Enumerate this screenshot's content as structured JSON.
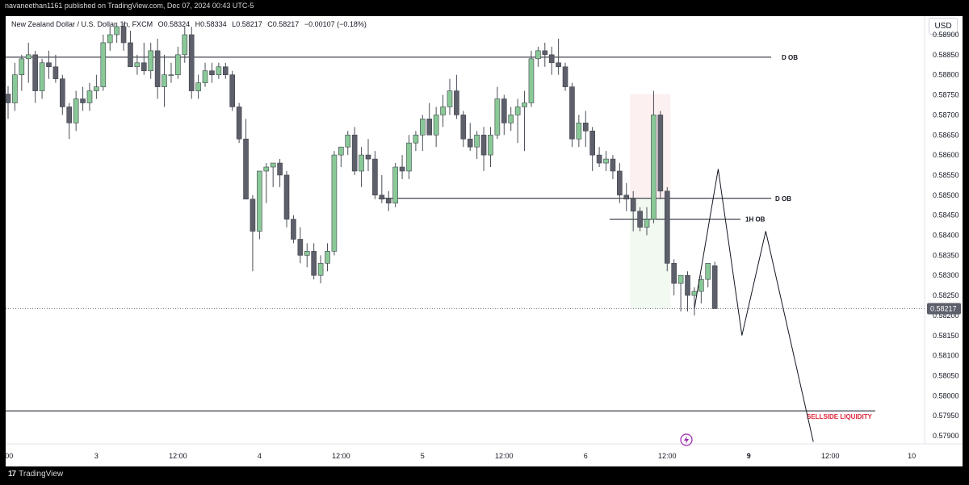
{
  "header": {
    "published_by": "navaneethan1161 published on TradingView.com, Dec 07, 2024 00:43 UTC-5"
  },
  "symbol": {
    "name": "New Zealand Dollar / U.S. Dollar, 1h, FXCM",
    "open": "O0.58324",
    "high": "H0.58334",
    "low": "L0.58217",
    "close": "C0.58217",
    "change": "−0.00107 (−0.18%)"
  },
  "currency_button": "USD",
  "footer": {
    "brand": "TradingView"
  },
  "colors": {
    "up": "#89c997",
    "down": "#5d606b",
    "sellside": "#e0243a"
  },
  "chart_data": {
    "type": "candlestick",
    "title": "New Zealand Dollar / U.S. Dollar, 1h, FXCM",
    "price_ticks": [
      "0.57900",
      "0.57950",
      "0.58000",
      "0.58050",
      "0.58100",
      "0.58150",
      "0.58200",
      "0.58250",
      "0.58300",
      "0.58350",
      "0.58400",
      "0.58450",
      "0.58500",
      "0.58550",
      "0.58600",
      "0.58650",
      "0.58700",
      "0.58750",
      "0.58800",
      "0.58850",
      "0.58900"
    ],
    "ylim": [
      0.5789,
      0.5894
    ],
    "time_ticks": [
      {
        "label": ":00",
        "bar": 0
      },
      {
        "label": "3",
        "bar": 13
      },
      {
        "label": "12:00",
        "bar": 25
      },
      {
        "label": "4",
        "bar": 37
      },
      {
        "label": "12:00",
        "bar": 49
      },
      {
        "label": "5",
        "bar": 61
      },
      {
        "label": "12:00",
        "bar": 73
      },
      {
        "label": "6",
        "bar": 85
      },
      {
        "label": "12:00",
        "bar": 97
      },
      {
        "label": "9",
        "bar": 109
      },
      {
        "label": "12:00",
        "bar": 121
      },
      {
        "label": "10",
        "bar": 133
      }
    ],
    "current_price": "0.58217",
    "candles": [
      [
        0.58752,
        0.58772,
        0.5869,
        0.5873
      ],
      [
        0.5873,
        0.5883,
        0.5871,
        0.588
      ],
      [
        0.588,
        0.5885,
        0.5876,
        0.5884
      ],
      [
        0.5884,
        0.5888,
        0.5878,
        0.5885
      ],
      [
        0.5885,
        0.5886,
        0.5873,
        0.5876
      ],
      [
        0.5876,
        0.5884,
        0.5874,
        0.5883
      ],
      [
        0.5883,
        0.5886,
        0.5879,
        0.5882
      ],
      [
        0.5882,
        0.5885,
        0.5878,
        0.5879
      ],
      [
        0.5879,
        0.588,
        0.587,
        0.5872
      ],
      [
        0.5872,
        0.5873,
        0.5864,
        0.5868
      ],
      [
        0.5868,
        0.5876,
        0.5866,
        0.5874
      ],
      [
        0.5874,
        0.5877,
        0.5871,
        0.5873
      ],
      [
        0.5873,
        0.5878,
        0.5871,
        0.5876
      ],
      [
        0.5876,
        0.588,
        0.5874,
        0.5877
      ],
      [
        0.5877,
        0.589,
        0.5876,
        0.5888
      ],
      [
        0.5888,
        0.5892,
        0.5886,
        0.589
      ],
      [
        0.589,
        0.5893,
        0.5888,
        0.5892
      ],
      [
        0.5892,
        0.5893,
        0.5886,
        0.5888
      ],
      [
        0.5888,
        0.5891,
        0.5882,
        0.5882
      ],
      [
        0.5882,
        0.5885,
        0.588,
        0.5883
      ],
      [
        0.5883,
        0.5888,
        0.588,
        0.5881
      ],
      [
        0.5881,
        0.5888,
        0.5879,
        0.5886
      ],
      [
        0.5886,
        0.5889,
        0.5874,
        0.5877
      ],
      [
        0.5877,
        0.5885,
        0.5872,
        0.588
      ],
      [
        0.588,
        0.5883,
        0.5878,
        0.588
      ],
      [
        0.588,
        0.5887,
        0.5879,
        0.5885
      ],
      [
        0.5885,
        0.5892,
        0.5883,
        0.589
      ],
      [
        0.589,
        0.5892,
        0.5874,
        0.5876
      ],
      [
        0.5876,
        0.588,
        0.5874,
        0.5878
      ],
      [
        0.5878,
        0.5883,
        0.5877,
        0.5881
      ],
      [
        0.5881,
        0.5883,
        0.5878,
        0.588
      ],
      [
        0.588,
        0.5883,
        0.5879,
        0.5882
      ],
      [
        0.5882,
        0.5883,
        0.5879,
        0.588
      ],
      [
        0.588,
        0.5881,
        0.5871,
        0.5872
      ],
      [
        0.5872,
        0.5873,
        0.5863,
        0.5864
      ],
      [
        0.5864,
        0.5869,
        0.5849,
        0.5849
      ],
      [
        0.5849,
        0.585,
        0.5831,
        0.5841
      ],
      [
        0.5841,
        0.5856,
        0.5839,
        0.5856
      ],
      [
        0.5856,
        0.5858,
        0.5848,
        0.5857
      ],
      [
        0.5857,
        0.5858,
        0.5852,
        0.5858
      ],
      [
        0.5858,
        0.5859,
        0.5852,
        0.5855
      ],
      [
        0.5855,
        0.5856,
        0.5842,
        0.5844
      ],
      [
        0.5844,
        0.5845,
        0.5838,
        0.5839
      ],
      [
        0.5839,
        0.5842,
        0.5833,
        0.5835
      ],
      [
        0.5835,
        0.5838,
        0.5832,
        0.5836
      ],
      [
        0.5836,
        0.5838,
        0.5829,
        0.583
      ],
      [
        0.583,
        0.5835,
        0.5828,
        0.5833
      ],
      [
        0.5833,
        0.5838,
        0.5831,
        0.5836
      ],
      [
        0.5836,
        0.5861,
        0.5835,
        0.586
      ],
      [
        0.586,
        0.5862,
        0.5857,
        0.5862
      ],
      [
        0.5862,
        0.5866,
        0.586,
        0.5865
      ],
      [
        0.5865,
        0.5867,
        0.5855,
        0.5856
      ],
      [
        0.5856,
        0.5862,
        0.5852,
        0.586
      ],
      [
        0.586,
        0.5864,
        0.5856,
        0.5859
      ],
      [
        0.5859,
        0.5861,
        0.5849,
        0.585
      ],
      [
        0.585,
        0.5855,
        0.5848,
        0.5849
      ],
      [
        0.5849,
        0.5851,
        0.5846,
        0.5848
      ],
      [
        0.5848,
        0.5858,
        0.5847,
        0.5857
      ],
      [
        0.5857,
        0.586,
        0.5854,
        0.5856
      ],
      [
        0.5856,
        0.5865,
        0.5854,
        0.5863
      ],
      [
        0.5863,
        0.5866,
        0.5861,
        0.5865
      ],
      [
        0.5865,
        0.587,
        0.5861,
        0.5869
      ],
      [
        0.5869,
        0.5873,
        0.5865,
        0.5865
      ],
      [
        0.5865,
        0.5872,
        0.5862,
        0.587
      ],
      [
        0.587,
        0.5875,
        0.5867,
        0.5872
      ],
      [
        0.5872,
        0.5879,
        0.587,
        0.5876
      ],
      [
        0.5876,
        0.588,
        0.5869,
        0.587
      ],
      [
        0.587,
        0.5871,
        0.5862,
        0.5864
      ],
      [
        0.5864,
        0.5868,
        0.5861,
        0.5862
      ],
      [
        0.5862,
        0.5866,
        0.5859,
        0.5865
      ],
      [
        0.5865,
        0.5867,
        0.5856,
        0.586
      ],
      [
        0.586,
        0.5867,
        0.5857,
        0.5865
      ],
      [
        0.5865,
        0.5877,
        0.5864,
        0.5874
      ],
      [
        0.5874,
        0.5875,
        0.5865,
        0.5868
      ],
      [
        0.5868,
        0.5872,
        0.5866,
        0.587
      ],
      [
        0.587,
        0.5874,
        0.5863,
        0.5872
      ],
      [
        0.5872,
        0.5876,
        0.5861,
        0.5873
      ],
      [
        0.5873,
        0.5886,
        0.5872,
        0.5884
      ],
      [
        0.5884,
        0.5887,
        0.5882,
        0.5886
      ],
      [
        0.5886,
        0.5888,
        0.5882,
        0.5885
      ],
      [
        0.5885,
        0.5887,
        0.588,
        0.5883
      ],
      [
        0.5883,
        0.5889,
        0.588,
        0.5882
      ],
      [
        0.5882,
        0.5883,
        0.5876,
        0.5877
      ],
      [
        0.5877,
        0.5878,
        0.5862,
        0.5864
      ],
      [
        0.5864,
        0.587,
        0.5862,
        0.5868
      ],
      [
        0.5868,
        0.5871,
        0.5862,
        0.5866
      ],
      [
        0.5866,
        0.5867,
        0.5856,
        0.586
      ],
      [
        0.586,
        0.5862,
        0.5857,
        0.5858
      ],
      [
        0.5858,
        0.5861,
        0.5856,
        0.5859
      ],
      [
        0.5859,
        0.586,
        0.5854,
        0.5856
      ],
      [
        0.5856,
        0.5858,
        0.5848,
        0.585
      ],
      [
        0.585,
        0.5853,
        0.5846,
        0.5849
      ],
      [
        0.5849,
        0.5851,
        0.5841,
        0.5846
      ],
      [
        0.5846,
        0.5847,
        0.5841,
        0.5842
      ],
      [
        0.5842,
        0.5847,
        0.584,
        0.5844
      ],
      [
        0.5844,
        0.5876,
        0.5843,
        0.587
      ],
      [
        0.587,
        0.5871,
        0.5849,
        0.5851
      ],
      [
        0.5851,
        0.5852,
        0.5831,
        0.5833
      ],
      [
        0.5833,
        0.5834,
        0.5825,
        0.5828
      ],
      [
        0.5828,
        0.583,
        0.5821,
        0.583
      ],
      [
        0.583,
        0.5831,
        0.5821,
        0.5825
      ],
      [
        0.5825,
        0.5827,
        0.582,
        0.5826
      ],
      [
        0.5826,
        0.583,
        0.5823,
        0.5829
      ],
      [
        0.5829,
        0.5833,
        0.5827,
        0.5833
      ],
      [
        0.58324,
        0.58334,
        0.58217,
        0.58217
      ]
    ],
    "levels": [
      {
        "label": "D OB",
        "price": 0.58844,
        "start_bar": 0
      },
      {
        "label": "D OB",
        "price": 0.58492,
        "start_bar": 55
      },
      {
        "label": "1H OB",
        "price": 0.5844,
        "start_bar": 89
      },
      {
        "label": "SELLSIDE LIQUIDITY",
        "price": 0.57962,
        "start_bar": 0
      }
    ],
    "projection": [
      {
        "bar": 101,
        "price": 0.58217
      },
      {
        "bar": 104.5,
        "price": 0.58565
      },
      {
        "bar": 108,
        "price": 0.5815
      },
      {
        "bar": 111.5,
        "price": 0.5841
      },
      {
        "bar": 118.5,
        "price": 0.57885
      }
    ]
  }
}
